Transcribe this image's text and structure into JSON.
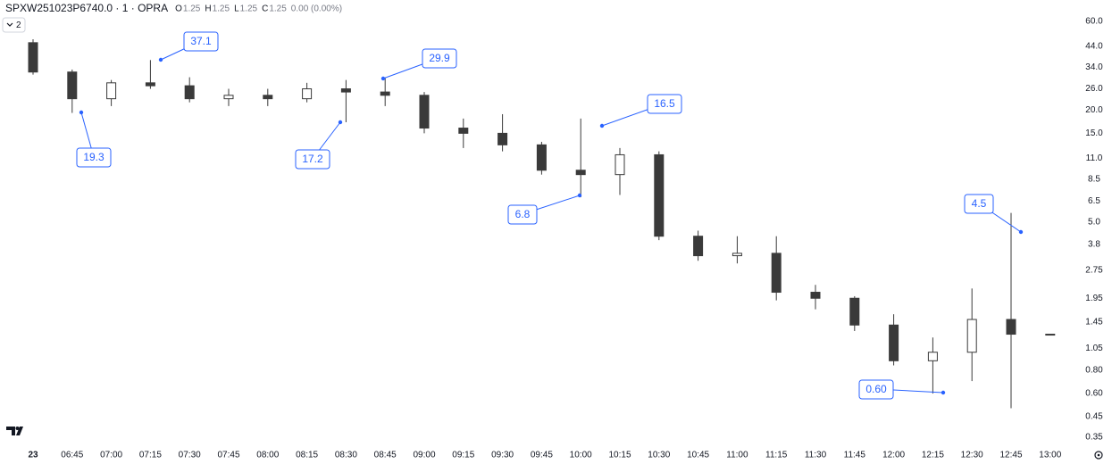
{
  "chart_data": {
    "type": "candlestick",
    "symbol": "SPXW251023P6740.0 · 1 · OPRA",
    "ohlc_labels": [
      "O",
      "H",
      "L",
      "C"
    ],
    "ohlc_values": [
      1.25,
      1.25,
      1.25,
      1.25
    ],
    "change": "0.00 (0.00%)",
    "interval_button": "2",
    "categories": [
      "23",
      "06:45",
      "07:00",
      "07:15",
      "07:30",
      "07:45",
      "08:00",
      "08:15",
      "08:30",
      "08:45",
      "09:00",
      "09:15",
      "09:30",
      "09:45",
      "10:00",
      "10:15",
      "10:30",
      "10:45",
      "11:00",
      "11:15",
      "11:30",
      "11:45",
      "12:00",
      "12:15",
      "12:30",
      "12:45",
      "13:00"
    ],
    "open": [
      46,
      32,
      23,
      28,
      27,
      23,
      24,
      23,
      26,
      25,
      24,
      16,
      15,
      13,
      9.5,
      9,
      11.5,
      4.2,
      3.3,
      3.4,
      2.1,
      1.95,
      1.4,
      0.9,
      1.0,
      1.5,
      1.25
    ],
    "high": [
      48,
      33,
      29,
      37.1,
      30,
      26,
      26,
      28,
      29,
      29.9,
      25,
      18,
      19,
      13.5,
      18,
      12.5,
      12,
      4.5,
      4.2,
      4.2,
      2.3,
      2.0,
      1.6,
      1.2,
      2.2,
      5.6,
      1.25
    ],
    "low": [
      31,
      19.3,
      21,
      26,
      22,
      21,
      21,
      22,
      17.2,
      21,
      15,
      12.5,
      12,
      9,
      6.8,
      7,
      4,
      3.1,
      3.0,
      1.9,
      1.7,
      1.3,
      0.85,
      0.6,
      0.7,
      0.5,
      1.25
    ],
    "close": [
      32,
      23,
      28,
      27,
      23,
      24,
      23,
      26,
      25,
      24,
      16,
      15,
      13,
      9.5,
      9,
      11.5,
      4.2,
      3.3,
      3.4,
      2.1,
      1.95,
      1.4,
      0.9,
      1.0,
      1.5,
      1.25,
      1.25
    ],
    "up_color": "#ffffff",
    "down_color": "#3a3a3a",
    "log_scale": true,
    "ylim": [
      0.32,
      78
    ],
    "yticks": [
      {
        "value": 0.35,
        "label": "0.35"
      },
      {
        "value": 0.45,
        "label": "0.45"
      },
      {
        "value": 0.6,
        "label": "0.60"
      },
      {
        "value": 0.8,
        "label": "0.80"
      },
      {
        "value": 1.05,
        "label": "1.05"
      },
      1.45,
      1.95,
      2.75,
      3.8,
      {
        "value": 5,
        "label": "5.0"
      },
      6.5,
      8.5,
      {
        "value": 11,
        "label": "11.0"
      },
      {
        "value": 15,
        "label": "15.0"
      },
      {
        "value": 20,
        "label": "20.0"
      },
      {
        "value": 26,
        "label": "26.0"
      },
      {
        "value": 34,
        "label": "34.0"
      },
      {
        "value": 44,
        "label": "44.0"
      },
      {
        "value": 60,
        "label": "60.0"
      }
    ],
    "annotations": [
      "37.1",
      "19.3",
      "29.9",
      "17.2",
      "16.5",
      "6.8",
      "4.5",
      "0.60"
    ]
  }
}
